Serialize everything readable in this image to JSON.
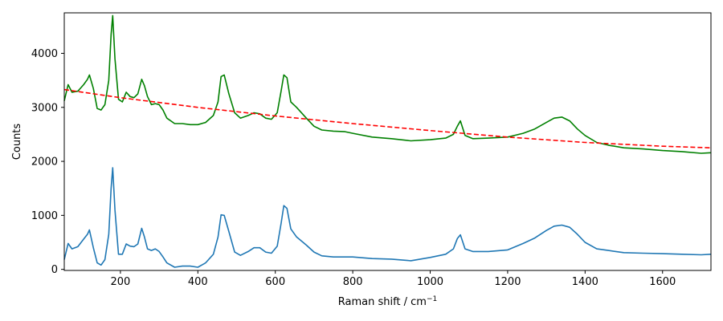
{
  "chart_data": {
    "type": "line",
    "title": "",
    "xlabel": "Raman shift / cm",
    "xlabel_superscript": "−1",
    "ylabel": "Counts",
    "xlim": [
      55,
      1725
    ],
    "ylim": [
      -20,
      4750
    ],
    "xticks": [
      200,
      400,
      600,
      800,
      1000,
      1200,
      1400,
      1600
    ],
    "yticks": [
      0,
      1000,
      2000,
      3000,
      4000
    ],
    "grid": false,
    "legend": "none",
    "series": [
      {
        "color": "#008000",
        "style": "solid",
        "x": [
          55,
          65,
          75,
          90,
          105,
          115,
          120,
          130,
          140,
          150,
          160,
          170,
          176,
          180,
          186,
          195,
          205,
          215,
          225,
          235,
          245,
          255,
          262,
          270,
          280,
          290,
          300,
          310,
          320,
          340,
          360,
          380,
          400,
          420,
          440,
          452,
          460,
          468,
          480,
          495,
          510,
          530,
          545,
          560,
          575,
          590,
          605,
          615,
          622,
          630,
          640,
          655,
          680,
          700,
          720,
          750,
          780,
          800,
          850,
          900,
          950,
          1000,
          1040,
          1060,
          1070,
          1078,
          1090,
          1110,
          1150,
          1200,
          1240,
          1270,
          1300,
          1320,
          1340,
          1360,
          1380,
          1400,
          1430,
          1460,
          1500,
          1550,
          1600,
          1650,
          1700,
          1725
        ],
        "y": [
          3120,
          3420,
          3280,
          3300,
          3420,
          3520,
          3600,
          3350,
          2980,
          2950,
          3050,
          3500,
          4350,
          4700,
          3900,
          3150,
          3100,
          3280,
          3200,
          3180,
          3250,
          3520,
          3400,
          3200,
          3050,
          3070,
          3050,
          2950,
          2800,
          2700,
          2700,
          2680,
          2680,
          2720,
          2850,
          3100,
          3570,
          3600,
          3250,
          2900,
          2800,
          2850,
          2900,
          2880,
          2800,
          2780,
          2900,
          3300,
          3600,
          3550,
          3100,
          3000,
          2800,
          2650,
          2580,
          2560,
          2550,
          2520,
          2450,
          2420,
          2380,
          2400,
          2430,
          2500,
          2650,
          2750,
          2480,
          2420,
          2430,
          2450,
          2520,
          2600,
          2720,
          2800,
          2820,
          2750,
          2600,
          2480,
          2350,
          2300,
          2250,
          2230,
          2200,
          2180,
          2150,
          2160
        ]
      },
      {
        "color": "#1f77b4",
        "style": "solid",
        "x": [
          55,
          65,
          75,
          90,
          105,
          115,
          120,
          130,
          140,
          150,
          160,
          170,
          176,
          180,
          186,
          195,
          205,
          215,
          225,
          235,
          245,
          255,
          262,
          270,
          280,
          290,
          300,
          310,
          320,
          340,
          360,
          380,
          400,
          420,
          440,
          452,
          460,
          468,
          480,
          495,
          510,
          530,
          545,
          560,
          575,
          590,
          605,
          615,
          622,
          630,
          640,
          655,
          680,
          700,
          720,
          750,
          780,
          800,
          850,
          900,
          950,
          1000,
          1040,
          1060,
          1070,
          1078,
          1090,
          1110,
          1150,
          1200,
          1240,
          1270,
          1300,
          1320,
          1340,
          1360,
          1380,
          1400,
          1430,
          1460,
          1500,
          1550,
          1600,
          1650,
          1700,
          1725
        ],
        "y": [
          180,
          480,
          380,
          420,
          560,
          650,
          730,
          400,
          120,
          80,
          180,
          650,
          1500,
          1880,
          1100,
          280,
          280,
          470,
          430,
          420,
          470,
          760,
          600,
          380,
          350,
          380,
          330,
          230,
          120,
          40,
          60,
          60,
          40,
          120,
          280,
          600,
          1010,
          1000,
          700,
          320,
          260,
          330,
          400,
          400,
          320,
          300,
          430,
          850,
          1180,
          1130,
          750,
          600,
          450,
          320,
          250,
          230,
          230,
          230,
          200,
          190,
          160,
          220,
          280,
          380,
          570,
          640,
          380,
          330,
          330,
          360,
          480,
          580,
          720,
          800,
          820,
          780,
          650,
          500,
          380,
          350,
          310,
          300,
          290,
          280,
          270,
          280
        ]
      },
      {
        "color": "#ff0000",
        "style": "dashed",
        "x": [
          55,
          200,
          400,
          600,
          800,
          1000,
          1200,
          1400,
          1600,
          1725
        ],
        "y": [
          3330,
          3180,
          3000,
          2840,
          2700,
          2570,
          2450,
          2350,
          2280,
          2250
        ]
      }
    ]
  }
}
